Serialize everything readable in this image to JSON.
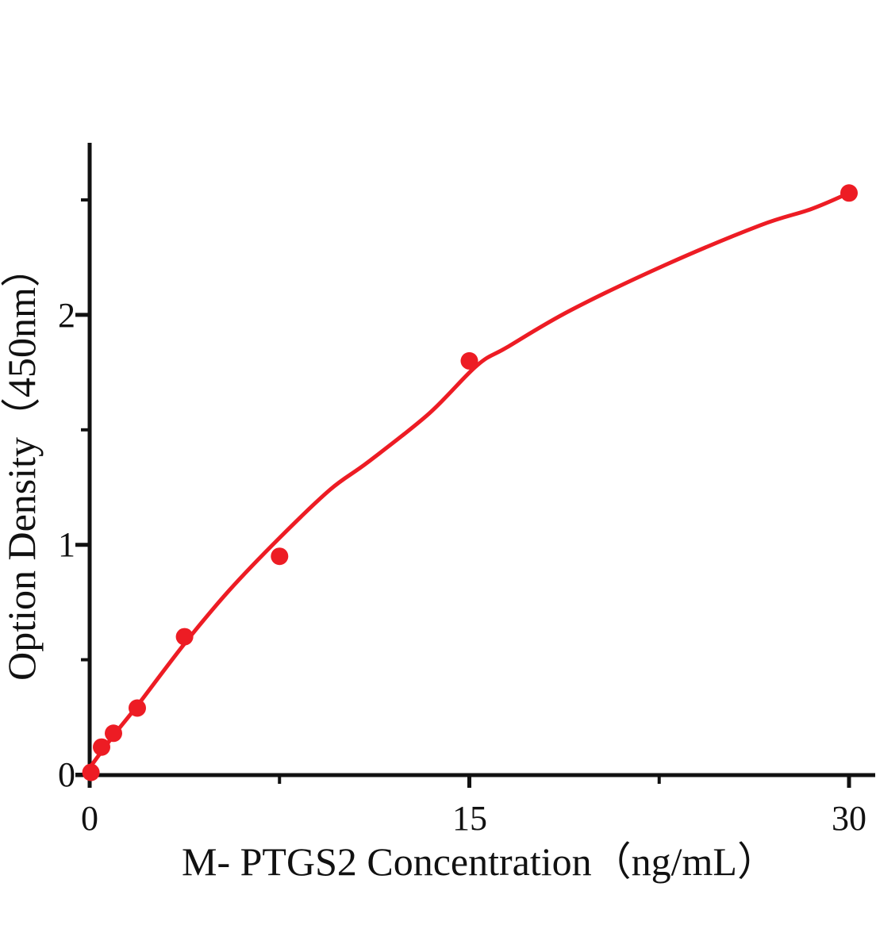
{
  "chart_data": {
    "type": "scatter",
    "title": "",
    "xlabel": "M- PTGS2 Concentration（ng/mL）",
    "ylabel": "Option Density（450nm）",
    "xlim": [
      0,
      31
    ],
    "ylim": [
      0,
      2.75
    ],
    "grid": false,
    "legend_position": "none",
    "x_major_ticks": [
      {
        "value": 0,
        "label": "0"
      },
      {
        "value": 15,
        "label": "15"
      },
      {
        "value": 30,
        "label": "30"
      }
    ],
    "x_minor_ticks": [
      7.5,
      22.5
    ],
    "y_major_ticks": [
      {
        "value": 0,
        "label": "0"
      },
      {
        "value": 1,
        "label": "1"
      },
      {
        "value": 2,
        "label": "2"
      }
    ],
    "y_minor_ticks": [
      0.5,
      1.5,
      2.5
    ],
    "series": [
      {
        "name": "standard-data-points",
        "type": "scatter",
        "marker": "circle",
        "color": "#ed1c24",
        "x": [
          0.05,
          0.47,
          0.94,
          1.88,
          3.75,
          7.5,
          15,
          30
        ],
        "y": [
          0.01,
          0.12,
          0.18,
          0.29,
          0.6,
          0.95,
          1.8,
          2.53
        ]
      },
      {
        "name": "fitted-curve",
        "type": "line",
        "color": "#ed1c24",
        "x": [
          0,
          0.94,
          1.88,
          3.75,
          5.5,
          7.5,
          9.5,
          11,
          13.4,
          15.3,
          16.5,
          19,
          22.8,
          26.5,
          28.5,
          30
        ],
        "y": [
          0.03,
          0.17,
          0.3,
          0.57,
          0.8,
          1.03,
          1.24,
          1.36,
          1.57,
          1.78,
          1.86,
          2.02,
          2.22,
          2.39,
          2.46,
          2.53
        ]
      }
    ],
    "colors": {
      "curve": "#ed1c24",
      "marker": "#ed1c24",
      "axis": "#111111",
      "background": "#ffffff"
    }
  }
}
